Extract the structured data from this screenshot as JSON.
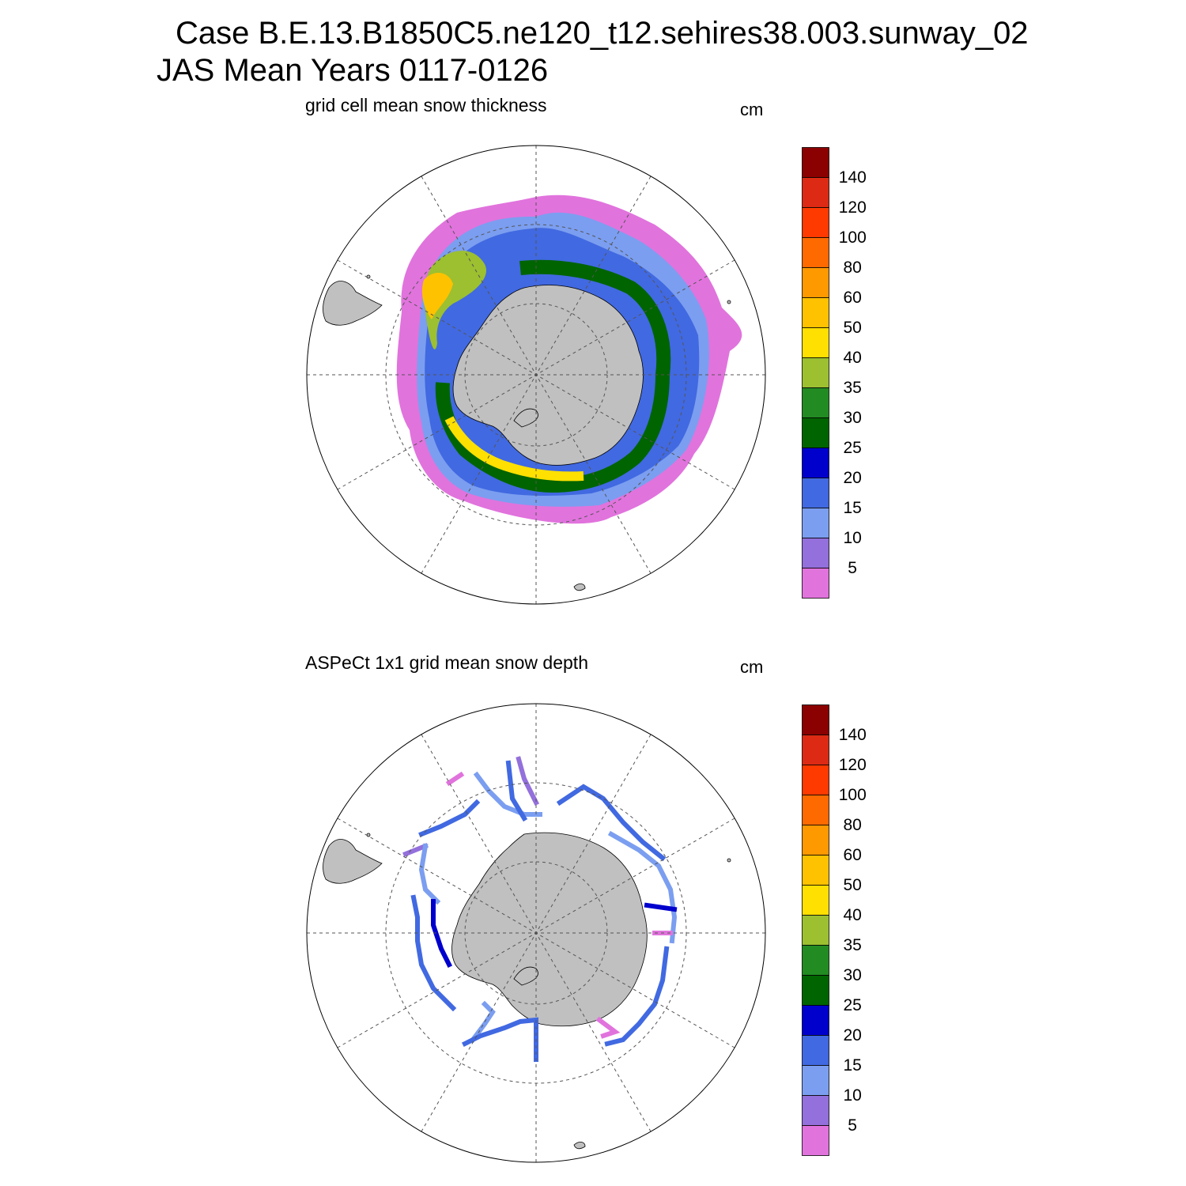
{
  "header": {
    "title_line1": "Case B.E.13.B1850C5.ne120_t12.sehires38.003.sunway_02",
    "title_line2": "JAS Mean   Years 0117-0126"
  },
  "panels": [
    {
      "title": "grid cell mean snow thickness",
      "units": "cm"
    },
    {
      "title": "ASPeCt 1x1 grid mean snow depth",
      "units": "cm"
    }
  ],
  "colorbar": {
    "labels": [
      "140",
      "120",
      "100",
      "80",
      "60",
      "50",
      "40",
      "35",
      "30",
      "25",
      "20",
      "15",
      "10",
      "5"
    ],
    "colors": [
      "#8b0000",
      "#dc2a14",
      "#ff3a00",
      "#ff6a00",
      "#ff9900",
      "#ffc200",
      "#ffe000",
      "#9cc030",
      "#228b22",
      "#006400",
      "#0000cd",
      "#4169e1",
      "#7b9ef0",
      "#9370db",
      "#e173dd"
    ]
  },
  "map_colors": {
    "land": "#c0c0c0",
    "grid": "#555555",
    "outline": "#000000"
  }
}
